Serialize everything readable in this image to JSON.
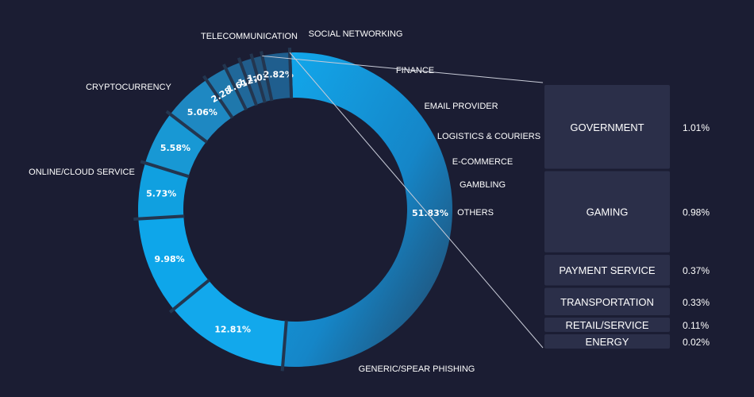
{
  "chart_data": [
    {
      "type": "pie",
      "style": "donut",
      "categories": [
        "GENERIC/SPEAR PHISHING",
        "ONLINE/CLOUD SERVICE",
        "CRYPTOCURRENCY",
        "TELECOMMUNICATION",
        "SOCIAL NETWORKING",
        "FINANCE",
        "EMAIL PROVIDER",
        "LOGISTICS & COURIERS",
        "E-COMMERCE",
        "GAMBLING",
        "OTHERS"
      ],
      "values": [
        51.83,
        12.81,
        9.98,
        5.73,
        5.58,
        5.06,
        2.28,
        1.61,
        1.27,
        1.03,
        2.82
      ],
      "value_labels": [
        "51.83%",
        "12.81%",
        "9.98%",
        "5.73%",
        "5.58%",
        "5.06%",
        "2.28 %",
        "1.61%",
        "1.27%",
        "1.03%",
        "2.82%"
      ],
      "colors": [
        "#15a0e4",
        "#12a8ec",
        "#0ea6ea",
        "#10a0e0",
        "#1898d4",
        "#1e88c2",
        "#1f78ac",
        "#20689a",
        "#215d8c",
        "#22557e",
        "#1f5e8e"
      ]
    },
    {
      "type": "bar",
      "orientation": "stacked-column",
      "description_of": "breakdown of OTHERS",
      "categories": [
        "GOVERNMENT",
        "GAMING",
        "PAYMENT SERVICE",
        "TRANSPORTATION",
        "RETAIL/SERVICE",
        "ENERGY"
      ],
      "values": [
        1.01,
        0.98,
        0.37,
        0.33,
        0.11,
        0.02
      ],
      "value_labels": [
        "1.01%",
        "0.98%",
        "0.37%",
        "0.33%",
        "0.11%",
        "0.02%"
      ],
      "color": "#2b2f49"
    }
  ]
}
